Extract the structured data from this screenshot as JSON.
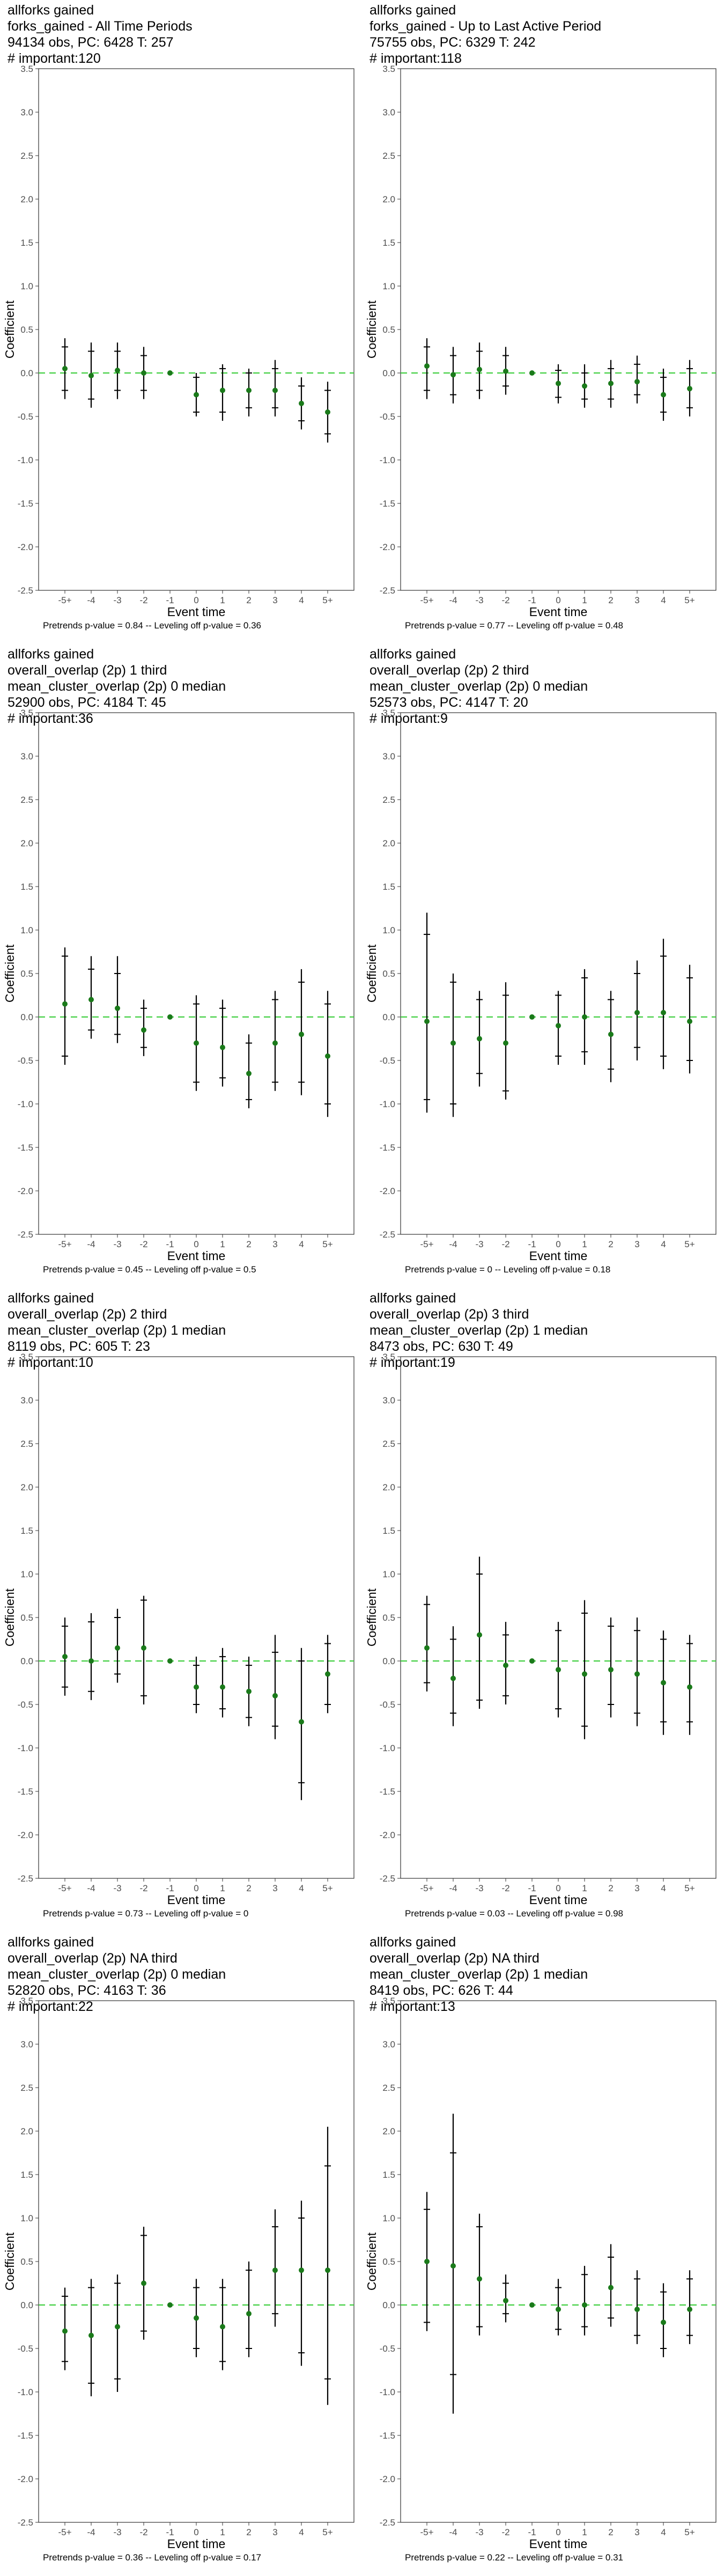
{
  "chart_data": [
    {
      "type": "scatter",
      "title_lines": [
        "allforks gained",
        "forks_gained - All Time Periods",
        "94134 obs, PC: 6428 T: 257",
        "# important:120"
      ],
      "xlabel": "Event time",
      "ylabel": "Coefficient",
      "categories": [
        "-5+",
        "-4",
        "-3",
        "-2",
        "-1",
        "0",
        "1",
        "2",
        "3",
        "4",
        "5+"
      ],
      "ylim": [
        -2.5,
        3.5
      ],
      "yticks": [
        "-2.5",
        "-2.0",
        "-1.5",
        "-1.0",
        "-0.5",
        "0.0",
        "0.5",
        "1.0",
        "1.5",
        "2.0",
        "2.5",
        "3.0",
        "3.5"
      ],
      "estimates": [
        0.05,
        -0.03,
        0.03,
        0.0,
        0.0,
        -0.25,
        -0.2,
        -0.2,
        -0.2,
        -0.35,
        -0.45
      ],
      "ci95_low": [
        -0.3,
        -0.4,
        -0.3,
        -0.3,
        0.0,
        -0.5,
        -0.55,
        -0.5,
        -0.5,
        -0.65,
        -0.8
      ],
      "ci95_high": [
        0.4,
        0.35,
        0.35,
        0.3,
        0.0,
        0.0,
        0.1,
        0.05,
        0.15,
        -0.05,
        -0.1
      ],
      "ci90_low": [
        -0.2,
        -0.3,
        -0.2,
        -0.2,
        0.0,
        -0.45,
        -0.45,
        -0.4,
        -0.4,
        -0.55,
        -0.7
      ],
      "ci90_high": [
        0.3,
        0.25,
        0.25,
        0.2,
        0.0,
        -0.05,
        0.05,
        0.0,
        0.05,
        -0.15,
        -0.2
      ],
      "footer": "Pretrends p-value = 0.84 -- Leveling off p-value = 0.36"
    },
    {
      "type": "scatter",
      "title_lines": [
        "allforks gained",
        "forks_gained - Up to Last Active Period",
        "75755 obs, PC: 6329 T: 242",
        "# important:118"
      ],
      "xlabel": "Event time",
      "ylabel": "Coefficient",
      "categories": [
        "-5+",
        "-4",
        "-3",
        "-2",
        "-1",
        "0",
        "1",
        "2",
        "3",
        "4",
        "5+"
      ],
      "ylim": [
        -2.5,
        3.5
      ],
      "yticks": [
        "-2.5",
        "-2.0",
        "-1.5",
        "-1.0",
        "-0.5",
        "0.0",
        "0.5",
        "1.0",
        "1.5",
        "2.0",
        "2.5",
        "3.0",
        "3.5"
      ],
      "estimates": [
        0.08,
        -0.02,
        0.04,
        0.02,
        0.0,
        -0.12,
        -0.15,
        -0.12,
        -0.1,
        -0.25,
        -0.18
      ],
      "ci95_low": [
        -0.3,
        -0.35,
        -0.3,
        -0.25,
        0.0,
        -0.35,
        -0.4,
        -0.4,
        -0.35,
        -0.55,
        -0.5
      ],
      "ci95_high": [
        0.4,
        0.3,
        0.35,
        0.3,
        0.0,
        0.1,
        0.1,
        0.15,
        0.2,
        0.05,
        0.15
      ],
      "ci90_low": [
        -0.2,
        -0.25,
        -0.2,
        -0.15,
        0.0,
        -0.28,
        -0.3,
        -0.3,
        -0.25,
        -0.45,
        -0.4
      ],
      "ci90_high": [
        0.3,
        0.2,
        0.25,
        0.2,
        0.0,
        0.03,
        0.0,
        0.05,
        0.1,
        -0.05,
        0.05
      ],
      "footer": "Pretrends p-value = 0.77 -- Leveling off p-value = 0.48"
    },
    {
      "type": "scatter",
      "title_lines": [
        "allforks gained",
        "overall_overlap (2p) 1 third",
        "mean_cluster_overlap (2p) 0 median",
        "52900 obs, PC: 4184 T: 45",
        "# important:36"
      ],
      "xlabel": "Event time",
      "ylabel": "Coefficient",
      "categories": [
        "-5+",
        "-4",
        "-3",
        "-2",
        "-1",
        "0",
        "1",
        "2",
        "3",
        "4",
        "5+"
      ],
      "ylim": [
        -2.5,
        3.5
      ],
      "yticks": [
        "-2.5",
        "-2.0",
        "-1.5",
        "-1.0",
        "-0.5",
        "0.0",
        "0.5",
        "1.0",
        "1.5",
        "2.0",
        "2.5",
        "3.0",
        "3.5"
      ],
      "estimates": [
        0.15,
        0.2,
        0.1,
        -0.15,
        0.0,
        -0.3,
        -0.35,
        -0.65,
        -0.3,
        -0.2,
        -0.45
      ],
      "ci95_low": [
        -0.55,
        -0.25,
        -0.3,
        -0.45,
        0.0,
        -0.85,
        -0.8,
        -1.05,
        -0.85,
        -0.9,
        -1.15
      ],
      "ci95_high": [
        0.8,
        0.7,
        0.7,
        0.2,
        0.0,
        0.25,
        0.2,
        -0.2,
        0.3,
        0.55,
        0.3
      ],
      "ci90_low": [
        -0.45,
        -0.15,
        -0.2,
        -0.35,
        0.0,
        -0.75,
        -0.7,
        -0.95,
        -0.75,
        -0.75,
        -1.0
      ],
      "ci90_high": [
        0.7,
        0.55,
        0.5,
        0.1,
        0.0,
        0.15,
        0.1,
        -0.3,
        0.2,
        0.4,
        0.15
      ],
      "footer": "Pretrends p-value = 0.45 -- Leveling off p-value = 0.5"
    },
    {
      "type": "scatter",
      "title_lines": [
        "allforks gained",
        "overall_overlap (2p) 2 third",
        "mean_cluster_overlap (2p) 0 median",
        "52573 obs, PC: 4147 T: 20",
        "# important:9"
      ],
      "xlabel": "Event time",
      "ylabel": "Coefficient",
      "categories": [
        "-5+",
        "-4",
        "-3",
        "-2",
        "-1",
        "0",
        "1",
        "2",
        "3",
        "4",
        "5+"
      ],
      "ylim": [
        -2.5,
        3.5
      ],
      "yticks": [
        "-2.5",
        "-2.0",
        "-1.5",
        "-1.0",
        "-0.5",
        "0.0",
        "0.5",
        "1.0",
        "1.5",
        "2.0",
        "2.5",
        "3.0",
        "3.5"
      ],
      "estimates": [
        -0.05,
        -0.3,
        -0.25,
        -0.3,
        0.0,
        -0.1,
        0.0,
        -0.2,
        0.05,
        0.05,
        -0.05
      ],
      "ci95_low": [
        -1.1,
        -1.15,
        -0.8,
        -0.95,
        0.0,
        -0.55,
        -0.55,
        -0.75,
        -0.5,
        -0.6,
        -0.65
      ],
      "ci95_high": [
        1.2,
        0.5,
        0.3,
        0.4,
        0.0,
        0.3,
        0.55,
        0.3,
        0.65,
        0.9,
        0.6
      ],
      "ci90_low": [
        -0.95,
        -1.0,
        -0.65,
        -0.85,
        0.0,
        -0.45,
        -0.4,
        -0.6,
        -0.35,
        -0.45,
        -0.5
      ],
      "ci90_high": [
        0.95,
        0.4,
        0.2,
        0.25,
        0.0,
        0.25,
        0.45,
        0.2,
        0.5,
        0.7,
        0.45
      ],
      "footer": "Pretrends p-value = 0 -- Leveling off p-value = 0.18"
    },
    {
      "type": "scatter",
      "title_lines": [
        "allforks gained",
        "overall_overlap (2p) 2 third",
        "mean_cluster_overlap (2p) 1 median",
        "8119 obs, PC: 605 T: 23",
        "# important:10"
      ],
      "xlabel": "Event time",
      "ylabel": "Coefficient",
      "categories": [
        "-5+",
        "-4",
        "-3",
        "-2",
        "-1",
        "0",
        "1",
        "2",
        "3",
        "4",
        "5+"
      ],
      "ylim": [
        -2.5,
        3.5
      ],
      "yticks": [
        "-2.5",
        "-2.0",
        "-1.5",
        "-1.0",
        "-0.5",
        "0.0",
        "0.5",
        "1.0",
        "1.5",
        "2.0",
        "2.5",
        "3.0",
        "3.5"
      ],
      "estimates": [
        0.05,
        0.0,
        0.15,
        0.15,
        0.0,
        -0.3,
        -0.3,
        -0.35,
        -0.4,
        -0.7,
        -0.15
      ],
      "ci95_low": [
        -0.4,
        -0.45,
        -0.25,
        -0.5,
        0.0,
        -0.6,
        -0.65,
        -0.75,
        -0.9,
        -1.6,
        -0.6
      ],
      "ci95_high": [
        0.5,
        0.55,
        0.6,
        0.75,
        0.0,
        0.05,
        0.15,
        0.05,
        0.3,
        0.15,
        0.3
      ],
      "ci90_low": [
        -0.3,
        -0.35,
        -0.15,
        -0.4,
        0.0,
        -0.5,
        -0.55,
        -0.65,
        -0.75,
        -1.4,
        -0.5
      ],
      "ci90_high": [
        0.4,
        0.45,
        0.5,
        0.7,
        0.0,
        -0.05,
        0.05,
        -0.05,
        0.1,
        0.0,
        0.2
      ],
      "footer": "Pretrends p-value = 0.73 -- Leveling off p-value = 0"
    },
    {
      "type": "scatter",
      "title_lines": [
        "allforks gained",
        "overall_overlap (2p) 3 third",
        "mean_cluster_overlap (2p) 1 median",
        "8473 obs, PC: 630 T: 49",
        "# important:19"
      ],
      "xlabel": "Event time",
      "ylabel": "Coefficient",
      "categories": [
        "-5+",
        "-4",
        "-3",
        "-2",
        "-1",
        "0",
        "1",
        "2",
        "3",
        "4",
        "5+"
      ],
      "ylim": [
        -2.5,
        3.5
      ],
      "yticks": [
        "-2.5",
        "-2.0",
        "-1.5",
        "-1.0",
        "-0.5",
        "0.0",
        "0.5",
        "1.0",
        "1.5",
        "2.0",
        "2.5",
        "3.0",
        "3.5"
      ],
      "estimates": [
        0.15,
        -0.2,
        0.3,
        -0.05,
        0.0,
        -0.1,
        -0.15,
        -0.1,
        -0.15,
        -0.25,
        -0.3
      ],
      "ci95_low": [
        -0.35,
        -0.75,
        -0.55,
        -0.5,
        0.0,
        -0.65,
        -0.9,
        -0.65,
        -0.75,
        -0.85,
        -0.85
      ],
      "ci95_high": [
        0.75,
        0.4,
        1.2,
        0.45,
        0.0,
        0.45,
        0.7,
        0.5,
        0.5,
        0.35,
        0.3
      ],
      "ci90_low": [
        -0.25,
        -0.6,
        -0.45,
        -0.4,
        0.0,
        -0.55,
        -0.75,
        -0.5,
        -0.6,
        -0.7,
        -0.7
      ],
      "ci90_high": [
        0.65,
        0.25,
        1.0,
        0.3,
        0.0,
        0.35,
        0.55,
        0.4,
        0.35,
        0.25,
        0.2
      ],
      "footer": "Pretrends p-value = 0.03 -- Leveling off p-value = 0.98"
    },
    {
      "type": "scatter",
      "title_lines": [
        "allforks gained",
        "overall_overlap (2p) NA third",
        "mean_cluster_overlap (2p) 0 median",
        "52820 obs, PC: 4163 T: 36",
        "# important:22"
      ],
      "xlabel": "Event time",
      "ylabel": "Coefficient",
      "categories": [
        "-5+",
        "-4",
        "-3",
        "-2",
        "-1",
        "0",
        "1",
        "2",
        "3",
        "4",
        "5+"
      ],
      "ylim": [
        -2.5,
        3.5
      ],
      "yticks": [
        "-2.5",
        "-2.0",
        "-1.5",
        "-1.0",
        "-0.5",
        "0.0",
        "0.5",
        "1.0",
        "1.5",
        "2.0",
        "2.5",
        "3.0",
        "3.5"
      ],
      "estimates": [
        -0.3,
        -0.35,
        -0.25,
        0.25,
        0.0,
        -0.15,
        -0.25,
        -0.1,
        0.4,
        0.4,
        0.4
      ],
      "ci95_low": [
        -0.75,
        -1.05,
        -1.0,
        -0.4,
        0.0,
        -0.6,
        -0.75,
        -0.6,
        -0.25,
        -0.7,
        -1.15
      ],
      "ci95_high": [
        0.2,
        0.3,
        0.35,
        0.9,
        0.0,
        0.3,
        0.3,
        0.5,
        1.1,
        1.2,
        2.05
      ],
      "ci90_low": [
        -0.65,
        -0.9,
        -0.85,
        -0.3,
        0.0,
        -0.5,
        -0.65,
        -0.5,
        -0.1,
        -0.55,
        -0.85
      ],
      "ci90_high": [
        0.1,
        0.2,
        0.25,
        0.8,
        0.0,
        0.2,
        0.2,
        0.4,
        0.9,
        1.0,
        1.6
      ],
      "footer": "Pretrends p-value = 0.36 -- Leveling off p-value = 0.17"
    },
    {
      "type": "scatter",
      "title_lines": [
        "allforks gained",
        "overall_overlap (2p) NA third",
        "mean_cluster_overlap (2p) 1 median",
        "8419 obs, PC: 626 T: 44",
        "# important:13"
      ],
      "xlabel": "Event time",
      "ylabel": "Coefficient",
      "categories": [
        "-5+",
        "-4",
        "-3",
        "-2",
        "-1",
        "0",
        "1",
        "2",
        "3",
        "4",
        "5+"
      ],
      "ylim": [
        -2.5,
        3.5
      ],
      "yticks": [
        "-2.5",
        "-2.0",
        "-1.5",
        "-1.0",
        "-0.5",
        "0.0",
        "0.5",
        "1.0",
        "1.5",
        "2.0",
        "2.5",
        "3.0",
        "3.5"
      ],
      "estimates": [
        0.5,
        0.45,
        0.3,
        0.05,
        0.0,
        -0.05,
        0.0,
        0.2,
        -0.05,
        -0.2,
        -0.05
      ],
      "ci95_low": [
        -0.3,
        -1.25,
        -0.35,
        -0.2,
        0.0,
        -0.35,
        -0.35,
        -0.25,
        -0.45,
        -0.6,
        -0.45
      ],
      "ci95_high": [
        1.3,
        2.2,
        1.05,
        0.35,
        0.0,
        0.3,
        0.45,
        0.7,
        0.4,
        0.25,
        0.4
      ],
      "ci90_low": [
        -0.2,
        -0.8,
        -0.25,
        -0.1,
        0.0,
        -0.28,
        -0.25,
        -0.15,
        -0.35,
        -0.5,
        -0.35
      ],
      "ci90_high": [
        1.1,
        1.75,
        0.9,
        0.25,
        0.0,
        0.2,
        0.35,
        0.55,
        0.3,
        0.15,
        0.3
      ],
      "footer": "Pretrends p-value = 0.22 -- Leveling off p-value = 0.31"
    }
  ]
}
